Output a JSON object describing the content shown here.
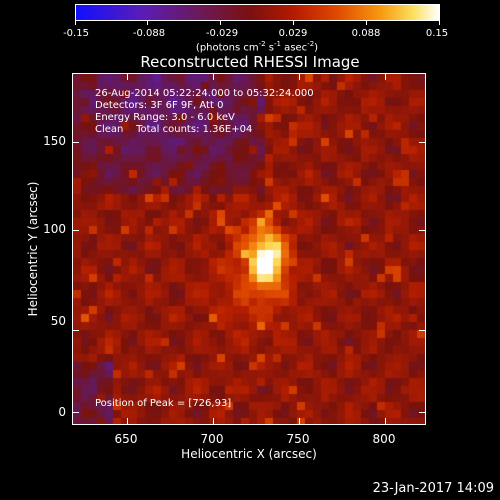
{
  "colorbar": {
    "ticks": [
      "-0.15",
      "-0.088",
      "-0.029",
      "0.029",
      "0.088",
      "0.15"
    ],
    "units_text": "(photons cm",
    "units_exp1": "-2",
    "units_mid": " s",
    "units_exp2": "-1",
    "units_mid2": " asec",
    "units_exp3": "-2",
    "units_end": ")"
  },
  "title": "Reconstructed RHESSI Image",
  "info": {
    "time_range": "26-Aug-2014 05:22:24.000 to 05:32:24.000",
    "detectors": "Detectors: 3F 6F 9F, Att 0",
    "energy_range": "Energy Range: 3.0 - 6.0 keV",
    "clean_label": "Clean",
    "total_counts": "Total counts: 1.36E+04",
    "peak_position": "Position of Peak = [726,93]"
  },
  "axes": {
    "xlabel": "Heliocentric X (arcsec)",
    "ylabel": "Heliocentric Y (arcsec)",
    "xticks": [
      "650",
      "700",
      "750",
      "800"
    ],
    "yticks": [
      "0",
      "50",
      "100",
      "150"
    ]
  },
  "timestamp": "23-Jan-2017 14:09"
}
